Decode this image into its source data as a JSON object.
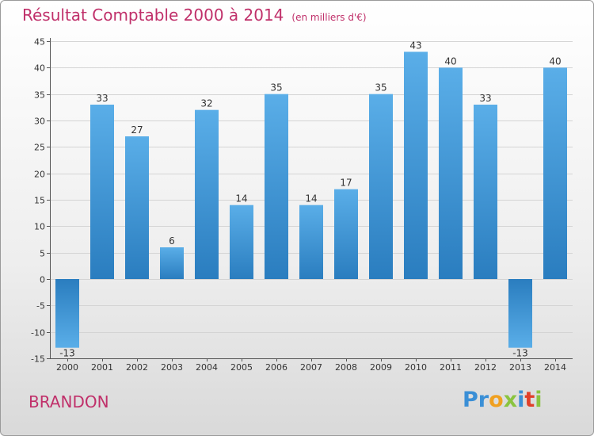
{
  "title": "Résultat Comptable 2000 à 2014",
  "subtitle": "(en milliers d'€)",
  "commune": "BRANDON",
  "logo": {
    "letters": [
      "P",
      "r",
      "o",
      "x",
      "i",
      "t",
      "i"
    ],
    "colors": [
      "#3a8fd6",
      "#3a8fd6",
      "#f0a020",
      "#8ac43f",
      "#3a8fd6",
      "#e0402a",
      "#8ac43f"
    ]
  },
  "colors": {
    "bar_top": "#5aaee8",
    "bar_bottom": "#2a7dbf",
    "title": "#c0306a"
  },
  "chart_data": {
    "type": "bar",
    "categories": [
      "2000",
      "2001",
      "2002",
      "2003",
      "2004",
      "2005",
      "2006",
      "2007",
      "2008",
      "2009",
      "2010",
      "2011",
      "2012",
      "2013",
      "2014"
    ],
    "values": [
      -13,
      33,
      27,
      6,
      32,
      14,
      35,
      14,
      17,
      35,
      43,
      40,
      33,
      -13,
      40
    ],
    "value_labels": [
      "-13",
      "33",
      "27",
      "6",
      "32",
      "14",
      "35",
      "14",
      "17",
      "35",
      "43",
      "40",
      "33",
      "-13",
      "40"
    ],
    "title": "Résultat Comptable 2000 à 2014",
    "ylim": [
      -15,
      45
    ],
    "yticks": [
      -15,
      -10,
      -5,
      0,
      5,
      10,
      15,
      20,
      25,
      30,
      35,
      40,
      45
    ],
    "grid": true
  }
}
